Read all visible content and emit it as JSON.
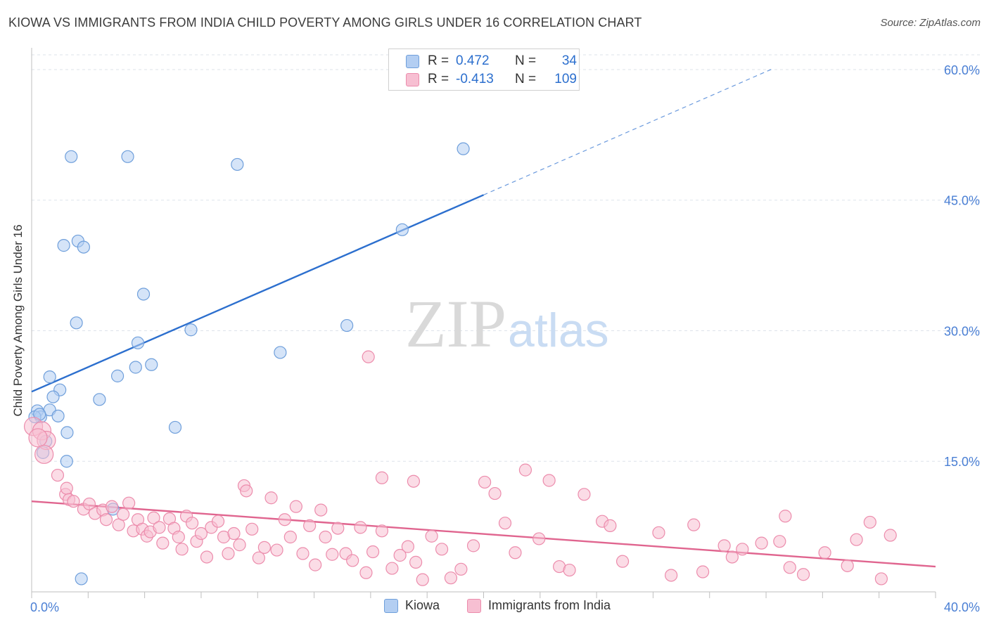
{
  "header": {
    "title": "KIOWA VS IMMIGRANTS FROM INDIA CHILD POVERTY AMONG GIRLS UNDER 16 CORRELATION CHART",
    "source": "Source: ZipAtlas.com"
  },
  "watermark": {
    "zip": "ZIP",
    "atlas": "atlas"
  },
  "colors": {
    "kiowa_fill": "#b3cef2",
    "kiowa_stroke": "#6f9fdb",
    "kiowa_line": "#2c6fce",
    "india_fill": "#f7bfd2",
    "india_stroke": "#ec8cac",
    "india_line": "#e0658f",
    "tick_label": "#4a7fd4",
    "grid": "#dde3ea"
  },
  "stats_legend": {
    "rows": [
      {
        "r_label": "R =",
        "r_value": "0.472",
        "n_label": "N =",
        "n_value": "34",
        "series": "kiowa"
      },
      {
        "r_label": "R =",
        "r_value": "-0.413",
        "n_label": "N =",
        "n_value": "109",
        "series": "india"
      }
    ]
  },
  "chart_data": {
    "type": "scatter",
    "title": "KIOWA VS IMMIGRANTS FROM INDIA CHILD POVERTY AMONG GIRLS UNDER 16 CORRELATION CHART",
    "xlabel": "",
    "ylabel": "Child Poverty Among Girls Under 16",
    "xlim": [
      0,
      40
    ],
    "ylim": [
      0,
      62.5
    ],
    "x_tick_labels": [
      {
        "value": 0,
        "label": "0.0%"
      },
      {
        "value": 40,
        "label": "40.0%"
      }
    ],
    "y_tick_labels": [
      {
        "value": 15,
        "label": "15.0%"
      },
      {
        "value": 30,
        "label": "30.0%"
      },
      {
        "value": 45,
        "label": "45.0%"
      },
      {
        "value": 60,
        "label": "60.0%"
      }
    ],
    "legend": {
      "placement": "bottom-center",
      "top_stats_placement": "top-center"
    },
    "grid": true,
    "series": [
      {
        "name": "Kiowa",
        "key": "kiowa",
        "x": [
          1.75,
          4.25,
          9.1,
          19.1,
          1.42,
          2.05,
          2.3,
          16.4,
          4.95,
          1.98,
          7.05,
          13.95,
          11.0,
          4.7,
          5.3,
          4.6,
          3.8,
          1.25,
          0.8,
          0.95,
          3.0,
          0.8,
          0.25,
          1.17,
          0.4,
          6.35,
          1.57,
          0.63,
          0.5,
          1.55,
          0.14,
          0.35,
          3.6,
          2.2
        ],
        "y": [
          50.0,
          50.0,
          49.1,
          50.9,
          39.8,
          40.3,
          39.6,
          41.6,
          34.2,
          30.9,
          30.1,
          30.6,
          27.5,
          28.6,
          26.1,
          25.8,
          24.8,
          23.2,
          24.7,
          22.4,
          22.1,
          20.9,
          20.8,
          20.2,
          20.1,
          18.9,
          18.3,
          17.3,
          16.0,
          15.0,
          20.1,
          20.4,
          9.5,
          1.5
        ]
      },
      {
        "name": "Immigrants from India",
        "key": "india",
        "x": [
          0.08,
          0.45,
          0.65,
          0.28,
          0.55,
          14.9,
          9.4,
          15.5,
          16.9,
          22.9,
          1.15,
          1.5,
          1.55,
          1.65,
          1.85,
          2.3,
          2.55,
          2.8,
          3.15,
          3.3,
          3.55,
          3.85,
          4.05,
          4.3,
          4.5,
          4.7,
          4.9,
          5.1,
          5.25,
          5.4,
          5.65,
          5.8,
          6.1,
          6.3,
          6.5,
          6.65,
          6.85,
          7.1,
          7.3,
          7.5,
          7.75,
          7.95,
          8.25,
          8.5,
          8.7,
          8.95,
          9.2,
          9.5,
          9.75,
          10.05,
          10.3,
          10.6,
          10.85,
          11.2,
          11.45,
          11.7,
          12.0,
          12.3,
          12.55,
          12.8,
          13.0,
          13.3,
          13.55,
          13.9,
          14.2,
          14.55,
          14.8,
          15.1,
          15.5,
          15.95,
          16.3,
          16.65,
          17.0,
          17.3,
          17.7,
          18.15,
          18.55,
          19.0,
          19.55,
          20.05,
          20.5,
          20.95,
          21.4,
          21.85,
          22.45,
          23.35,
          23.8,
          24.45,
          25.25,
          25.6,
          26.15,
          27.75,
          28.3,
          29.3,
          29.7,
          30.65,
          31.0,
          31.45,
          32.3,
          33.1,
          33.35,
          33.55,
          34.15,
          35.1,
          36.1,
          36.5,
          37.1,
          37.6,
          38.0
        ],
        "y": [
          19.0,
          18.5,
          17.4,
          17.7,
          15.8,
          27.0,
          12.2,
          13.1,
          12.7,
          12.8,
          13.4,
          11.2,
          11.9,
          10.6,
          10.4,
          9.5,
          10.1,
          9.0,
          9.4,
          8.3,
          9.8,
          7.7,
          8.9,
          10.2,
          7.0,
          8.3,
          7.2,
          6.4,
          6.9,
          8.5,
          7.4,
          5.6,
          8.4,
          7.3,
          6.3,
          4.9,
          8.7,
          7.9,
          5.8,
          6.7,
          4.0,
          7.4,
          8.1,
          6.3,
          4.4,
          6.7,
          5.4,
          11.6,
          7.2,
          3.9,
          5.1,
          10.8,
          4.8,
          8.3,
          6.3,
          9.8,
          4.4,
          7.6,
          3.1,
          9.4,
          6.3,
          4.3,
          7.3,
          4.4,
          3.6,
          7.4,
          2.2,
          4.6,
          7.0,
          2.7,
          4.2,
          5.2,
          3.4,
          1.4,
          6.4,
          4.9,
          1.6,
          2.6,
          5.3,
          12.6,
          11.3,
          7.9,
          4.5,
          14.0,
          6.1,
          2.9,
          2.5,
          11.2,
          8.1,
          7.6,
          3.5,
          6.8,
          1.9,
          7.7,
          2.3,
          5.3,
          4.0,
          4.9,
          5.6,
          5.8,
          8.7,
          2.8,
          2.0,
          4.5,
          3.0,
          6.0,
          8.0,
          1.5,
          6.5
        ]
      }
    ],
    "trend_lines": [
      {
        "series": "kiowa",
        "x": [
          0,
          20.0
        ],
        "y": [
          23.0,
          45.6
        ],
        "extension_x": [
          20.0,
          32.8
        ],
        "extension_y": [
          45.6,
          60.1
        ]
      },
      {
        "series": "india",
        "x": [
          0,
          40
        ],
        "y": [
          10.4,
          2.9
        ]
      }
    ]
  }
}
